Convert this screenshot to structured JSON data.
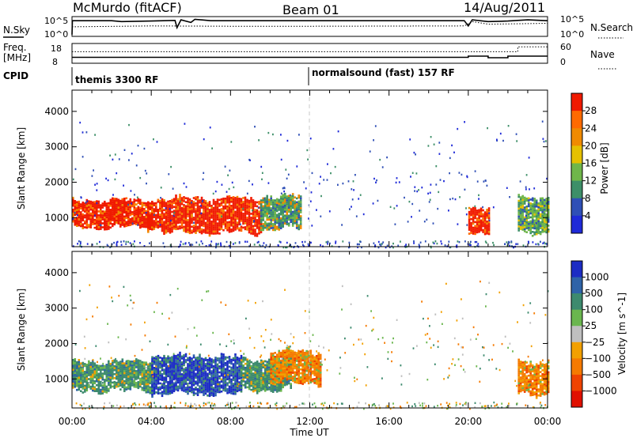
{
  "header": {
    "radar": "McMurdo (fitACF)",
    "beam": "Beam 01",
    "date": "14/Aug/2011"
  },
  "top_panels": {
    "nsky_label": "N.Sky",
    "nsky_hi": "10^5",
    "nsky_lo": "10^0",
    "nsearch_label": "N.Search",
    "nsearch_hi": "10^5",
    "nsearch_lo": "10^0",
    "freq_label_1": "Freq.",
    "freq_label_2": "[MHz]",
    "freq_hi": "18",
    "freq_lo": "8",
    "nave_label": "Nave",
    "nave_hi": "60",
    "nave_lo": "0",
    "cpid_label": "CPID",
    "cpid_1": "themis 3300 RF",
    "cpid_2": "normalsound (fast) 157 RF"
  },
  "x_axis": {
    "label": "Time UT",
    "ticks": [
      "00:00",
      "04:00",
      "08:00",
      "12:00",
      "16:00",
      "20:00",
      "00:00"
    ]
  },
  "power_panel": {
    "ylabel": "Slant Range [km]",
    "yticks": [
      "1000",
      "2000",
      "3000",
      "4000"
    ],
    "colorbar_label": "Power [dB]",
    "colorbar_ticks": [
      "4",
      "8",
      "12",
      "16",
      "20",
      "24",
      "28"
    ],
    "colors": [
      "#1f2ad8",
      "#2f4fb6",
      "#3d8f68",
      "#6fb64a",
      "#e5c000",
      "#f08a00",
      "#ff6a00",
      "#f01a00"
    ]
  },
  "velocity_panel": {
    "ylabel": "Slant Range [km]",
    "yticks": [
      "1000",
      "2000",
      "3000",
      "4000"
    ],
    "colorbar_label": "Velocity [m s^-1]",
    "colorbar_ticks": [
      "1000",
      "500",
      "100",
      "25",
      "−25",
      "−100",
      "−500",
      "−1000"
    ],
    "colors": [
      "#1c2cc4",
      "#2f63a8",
      "#3d8a6e",
      "#6ab64e",
      "#bfbfbf",
      "#f2a000",
      "#f57a00",
      "#ef4300",
      "#e01000"
    ]
  },
  "chart_data": [
    {
      "type": "heatmap",
      "title": "Power",
      "xlabel": "Time UT",
      "ylabel": "Slant Range [km]",
      "xlim": [
        "00:00",
        "24:00"
      ],
      "ylim": [
        180,
        4600
      ],
      "colorbar": {
        "label": "Power [dB]",
        "ticks": [
          4,
          8,
          12,
          16,
          20,
          24,
          28
        ]
      },
      "regions": [
        {
          "t_start": 0.0,
          "t_end": 4.5,
          "r_low": 750,
          "r_high": 1500,
          "approx_db": 28
        },
        {
          "t_start": 4.5,
          "t_end": 9.5,
          "r_low": 600,
          "r_high": 1550,
          "approx_db": 28
        },
        {
          "t_start": 9.5,
          "t_end": 11.5,
          "r_low": 700,
          "r_high": 1600,
          "approx_db": 12
        },
        {
          "t_start": 20.0,
          "t_end": 21.0,
          "r_low": 600,
          "r_high": 1300,
          "approx_db": 24
        },
        {
          "t_start": 22.5,
          "t_end": 24.0,
          "r_low": 600,
          "r_high": 1600,
          "approx_db": 16
        }
      ]
    },
    {
      "type": "heatmap",
      "title": "Velocity",
      "xlabel": "Time UT",
      "ylabel": "Slant Range [km]",
      "xlim": [
        "00:00",
        "24:00"
      ],
      "ylim": [
        180,
        4600
      ],
      "colorbar": {
        "label": "Velocity [m s^-1]",
        "ticks": [
          1000,
          500,
          100,
          25,
          -25,
          -100,
          -500,
          -1000
        ]
      },
      "regions": [
        {
          "t_start": 0.0,
          "t_end": 4.0,
          "r_low": 700,
          "r_high": 1500,
          "approx_v": 100
        },
        {
          "t_start": 4.0,
          "t_end": 8.5,
          "r_low": 600,
          "r_high": 1650,
          "approx_v": 500
        },
        {
          "t_start": 8.5,
          "t_end": 11.0,
          "r_low": 700,
          "r_high": 1550,
          "approx_v": 100
        },
        {
          "t_start": 10.0,
          "t_end": 12.5,
          "r_low": 900,
          "r_high": 1800,
          "approx_v": -500
        },
        {
          "t_start": 22.5,
          "t_end": 24.0,
          "r_low": 600,
          "r_high": 1500,
          "approx_v": -500
        }
      ]
    }
  ]
}
